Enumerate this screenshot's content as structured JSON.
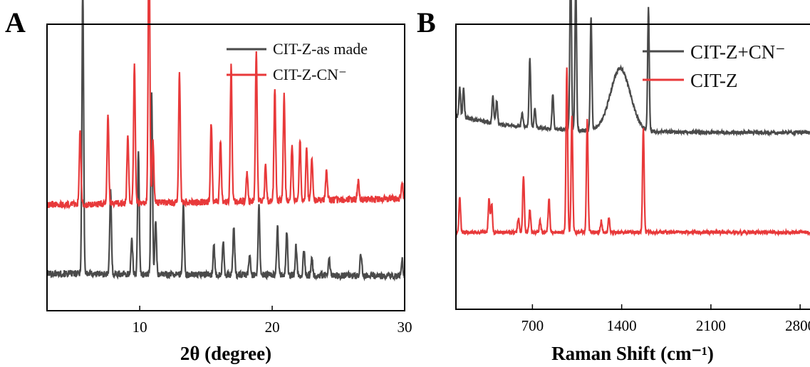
{
  "chart_data": [
    {
      "panel": "A",
      "type": "line",
      "xlabel": "2θ (degree)",
      "xlim": [
        3,
        30
      ],
      "xticks": [
        10,
        20,
        30
      ],
      "y_ticks_shown": false,
      "legend_position": "top-right",
      "series": [
        {
          "name": "CIT-Z-as made",
          "color": "#4a4a4a",
          "baseline": 0.13,
          "slope": -0.15,
          "peaks": [
            [
              5.7,
              1.0
            ],
            [
              7.8,
              0.29
            ],
            [
              9.4,
              0.12
            ],
            [
              9.9,
              0.42
            ],
            [
              10.9,
              0.63
            ],
            [
              11.2,
              0.18
            ],
            [
              13.3,
              0.24
            ],
            [
              15.6,
              0.1
            ],
            [
              16.3,
              0.12
            ],
            [
              17.1,
              0.17
            ],
            [
              18.3,
              0.07
            ],
            [
              19.0,
              0.24
            ],
            [
              20.4,
              0.17
            ],
            [
              21.1,
              0.15
            ],
            [
              21.8,
              0.1
            ],
            [
              22.4,
              0.09
            ],
            [
              23.0,
              0.06
            ],
            [
              24.3,
              0.06
            ],
            [
              26.7,
              0.08
            ],
            [
              29.8,
              0.06
            ]
          ]
        },
        {
          "name": "CIT-Z-CN⁻",
          "color": "#e8393a",
          "baseline": 0.37,
          "slope": 0.35,
          "peaks": [
            [
              5.5,
              0.26
            ],
            [
              7.6,
              0.31
            ],
            [
              9.1,
              0.24
            ],
            [
              9.6,
              0.48
            ],
            [
              10.7,
              0.95
            ],
            [
              11.0,
              0.22
            ],
            [
              13.0,
              0.45
            ],
            [
              15.4,
              0.28
            ],
            [
              16.1,
              0.22
            ],
            [
              16.9,
              0.47
            ],
            [
              18.1,
              0.1
            ],
            [
              18.8,
              0.53
            ],
            [
              19.5,
              0.12
            ],
            [
              20.2,
              0.39
            ],
            [
              20.9,
              0.37
            ],
            [
              21.5,
              0.2
            ],
            [
              22.1,
              0.21
            ],
            [
              22.6,
              0.18
            ],
            [
              23.0,
              0.15
            ],
            [
              24.1,
              0.1
            ],
            [
              26.5,
              0.07
            ],
            [
              29.8,
              0.06
            ]
          ]
        }
      ]
    },
    {
      "panel": "B",
      "type": "line",
      "xlabel": "Raman Shift (cm⁻¹)",
      "xlim": [
        100,
        2950
      ],
      "xticks": [
        700,
        1400,
        2100,
        2800
      ],
      "y_ticks_shown": false,
      "legend_position": "top-right",
      "series": [
        {
          "name": "CIT-Z+CN⁻",
          "color": "#4a4a4a",
          "baseline": 0.64,
          "peaks": [
            [
              130,
              0.1
            ],
            [
              160,
              0.1
            ],
            [
              390,
              0.1
            ],
            [
              420,
              0.08
            ],
            [
              620,
              0.05
            ],
            [
              680,
              0.24
            ],
            [
              720,
              0.07
            ],
            [
              860,
              0.12
            ],
            [
              1000,
              0.61
            ],
            [
              1040,
              0.51
            ],
            [
              1160,
              0.4
            ],
            [
              1610,
              0.43
            ],
            [
              1390,
              0.22
            ]
          ]
        },
        {
          "name": "CIT-Z",
          "color": "#e8393a",
          "baseline": 0.27,
          "peaks": [
            [
              130,
              0.12
            ],
            [
              360,
              0.12
            ],
            [
              380,
              0.1
            ],
            [
              590,
              0.05
            ],
            [
              630,
              0.2
            ],
            [
              680,
              0.08
            ],
            [
              760,
              0.04
            ],
            [
              830,
              0.12
            ],
            [
              970,
              0.58
            ],
            [
              1010,
              0.41
            ],
            [
              1130,
              0.4
            ],
            [
              1240,
              0.04
            ],
            [
              1300,
              0.05
            ],
            [
              1570,
              0.37
            ]
          ]
        }
      ]
    }
  ]
}
